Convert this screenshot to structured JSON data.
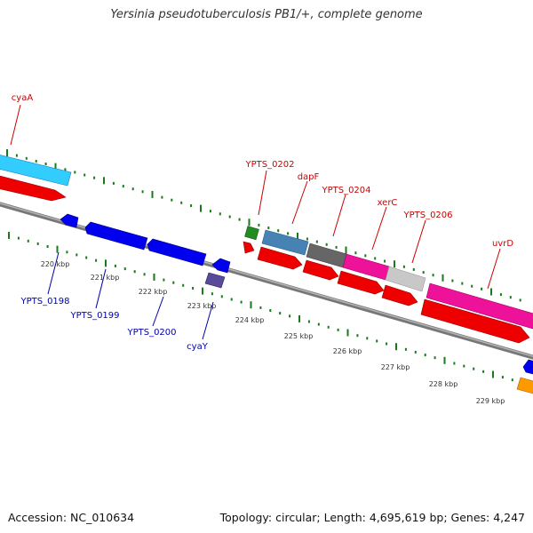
{
  "header": {
    "title": "Yersinia pseudotuberculosis PB1/+, complete genome"
  },
  "footer": {
    "accession": "Accession: NC_010634",
    "summary": "Topology: circular; Length: 4,695,619 bp; Genes: 4,247"
  },
  "map": {
    "ticks": [
      "220 kbp",
      "221 kbp",
      "222 kbp",
      "223 kbp",
      "224 kbp",
      "225 kbp",
      "226 kbp",
      "227 kbp",
      "228 kbp",
      "229 kbp"
    ],
    "gene_labels_top": [
      "cyaA",
      "YPTS_0202",
      "dapF",
      "YPTS_0204",
      "xerC",
      "YPTS_0206",
      "uvrD"
    ],
    "gene_labels_bottom": [
      "YPTS_0198",
      "YPTS_0199",
      "YPTS_0200",
      "cyaY"
    ],
    "colors": {
      "red_label": "#cc0000",
      "blue_label": "#0000aa",
      "tick_green": "#1a7a1a",
      "backbone": "#8a8a8a",
      "cds_red": "#ee0000",
      "cds_blue": "#0000ee",
      "cds_cyan": "#33ccff",
      "cds_steel": "#4682b4",
      "cds_darkgray": "#666666",
      "cds_pink": "#ee1199",
      "cds_lightgray": "#c8c8c8",
      "cds_green": "#228b22",
      "cds_purple": "#5a4a9a",
      "cds_orange": "#ff9900"
    }
  }
}
